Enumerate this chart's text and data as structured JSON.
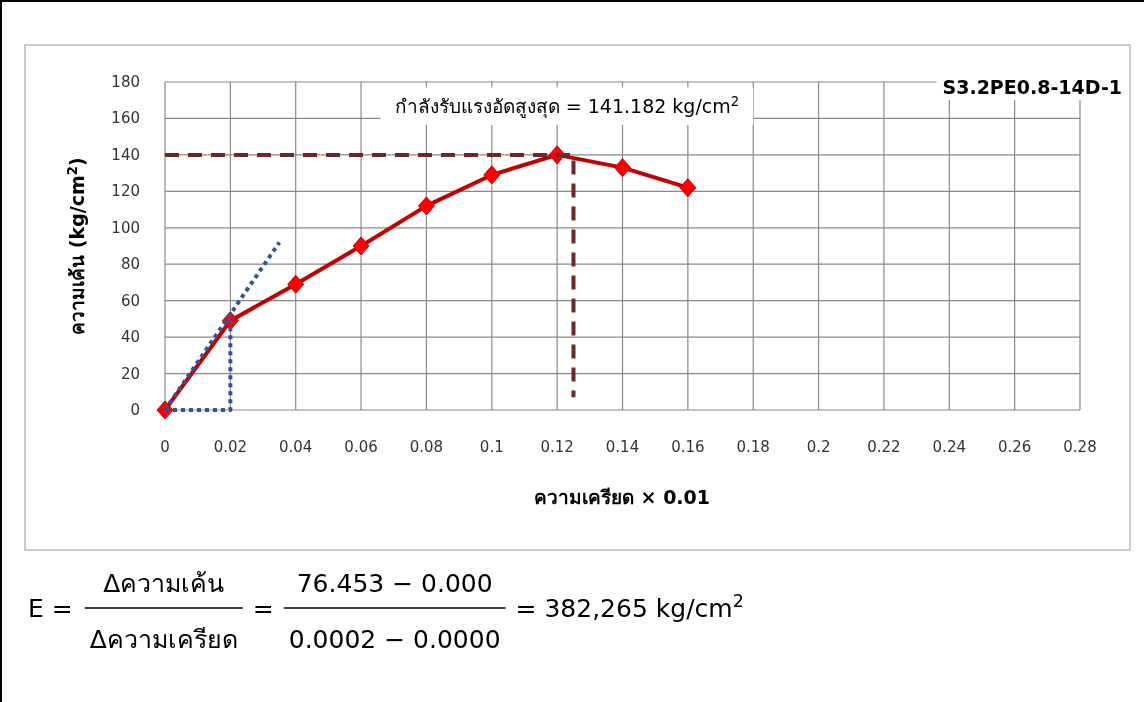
{
  "chart_data": {
    "type": "line",
    "title": "S3.2PE0.8-14D-1",
    "xlabel": "ความเครียด × 0.01",
    "ylabel": "ความเค้น  (kg/cm$^{2}$)",
    "xlim": [
      0,
      0.28
    ],
    "xticks": [
      0,
      0.02,
      0.04,
      0.06,
      0.08,
      0.1,
      0.12,
      0.14,
      0.16,
      0.18,
      0.2,
      0.22,
      0.24,
      0.26,
      0.28
    ],
    "ylim": [
      0,
      180
    ],
    "yticks": [
      0,
      20,
      40,
      60,
      80,
      100,
      120,
      140,
      160,
      180
    ],
    "grid": true,
    "series": [
      {
        "color": "#c00000",
        "marker": "diamond",
        "line_style": "solid",
        "x": [
          0,
          0.02,
          0.04,
          0.06,
          0.08,
          0.1,
          0.12,
          0.14,
          0.16
        ],
        "values": [
          0,
          49,
          69,
          90,
          112,
          129,
          140,
          133,
          122
        ]
      },
      {
        "color": "#2f5597",
        "marker": "none",
        "line_style": "dotted",
        "x": [
          0,
          0.035
        ],
        "values": [
          0,
          92
        ]
      },
      {
        "color": "#2f5597",
        "marker": "none",
        "line_style": "dotted",
        "x": [
          0,
          0.02,
          0.02
        ],
        "values": [
          0,
          0,
          52
        ]
      },
      {
        "color": "#6b2a2a",
        "marker": "none",
        "line_style": "dashed",
        "x": [
          0,
          0.125,
          0.125
        ],
        "values": [
          140,
          140,
          7
        ]
      }
    ],
    "annotations": [
      "กำลังรับแรงอัดสูงสุด  = 141.182 kg/cm$^{2}$",
      "E =",
      "Δความเค้น",
      "Δความเครียด",
      "=",
      "76.453 − 0.000",
      "0.0002 − 0.0000",
      "= 382,265 kg/cm$^{2}$"
    ]
  }
}
